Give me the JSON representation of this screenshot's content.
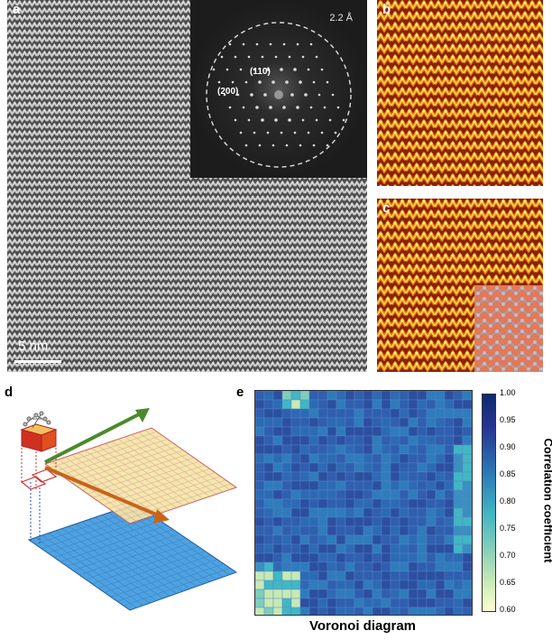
{
  "panels": {
    "a": {
      "label": "a",
      "scale_bar": "5 nm",
      "fft": {
        "ring_label": "2.2 Å",
        "spot_labels": [
          "(110)",
          "(200)"
        ]
      }
    },
    "b": {
      "label": "b"
    },
    "c": {
      "label": "c"
    },
    "d": {
      "label": "d"
    },
    "e": {
      "label": "e",
      "xlabel": "Voronoi diagram",
      "colorbar": {
        "label": "Correlation coefficient",
        "ticks": [
          "1.00",
          "0.95",
          "0.90",
          "0.85",
          "0.80",
          "0.75",
          "0.70",
          "0.65",
          "0.60"
        ],
        "max_color": "#0d2a6e",
        "min_color": "#ffffd4"
      }
    }
  },
  "colors": {
    "stem_bg": "#6e6e6e",
    "heat_dark": "#7a1a00",
    "heat_mid": "#d8641a",
    "heat_bright": "#ffe04a",
    "grid_yellow": "#f3e7a6",
    "grid_blue": "#4fa2e0",
    "arrow_green": "#4a8a2a",
    "arrow_orange": "#c8641a"
  }
}
